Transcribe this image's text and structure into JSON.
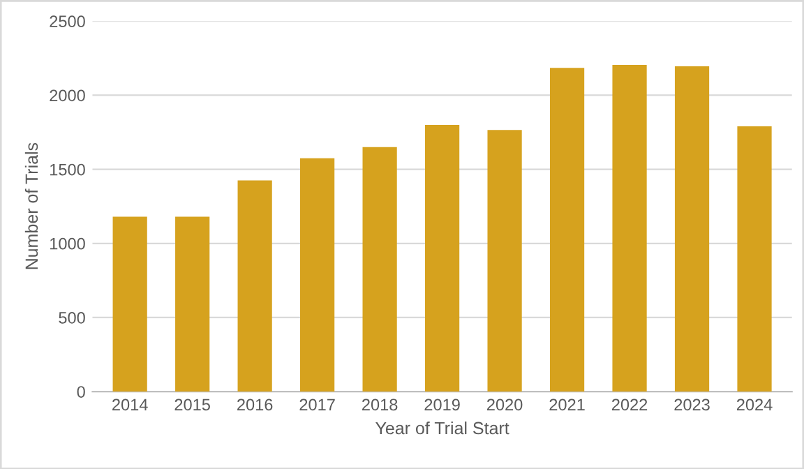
{
  "chart_data": {
    "type": "bar",
    "xlabel": "Year of Trial Start",
    "ylabel": "Number of Trials",
    "categories": [
      "2014",
      "2015",
      "2016",
      "2017",
      "2018",
      "2019",
      "2020",
      "2021",
      "2022",
      "2023",
      "2024"
    ],
    "values": [
      1180,
      1180,
      1425,
      1575,
      1650,
      1800,
      1765,
      2185,
      2205,
      2195,
      1790
    ],
    "color": "#d6a21e",
    "ylim": [
      0,
      2500
    ],
    "yticks": [
      0,
      500,
      1000,
      1500,
      2000,
      2500
    ],
    "grid": "y"
  }
}
